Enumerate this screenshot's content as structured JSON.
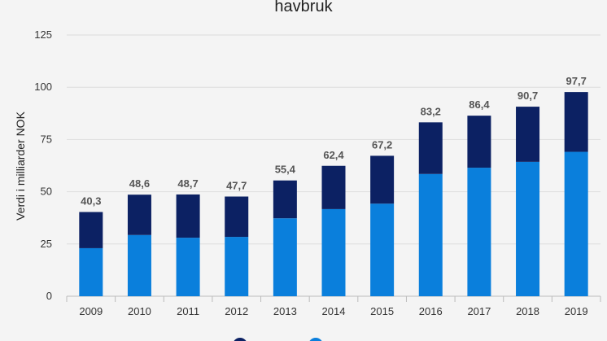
{
  "chart_data": {
    "type": "bar",
    "stacked": true,
    "title": "havbruk",
    "xlabel": "",
    "ylabel": "Verdi i milliarder NOK",
    "ylim": [
      0,
      125
    ],
    "yticks": [
      0,
      25,
      50,
      75,
      100,
      125
    ],
    "grid": true,
    "legend_position": "bottom",
    "categories": [
      "2009",
      "2010",
      "2011",
      "2012",
      "2013",
      "2014",
      "2015",
      "2016",
      "2017",
      "2018",
      "2019"
    ],
    "series": [
      {
        "name": "",
        "color": "#0a7fdc",
        "values": [
          23.0,
          29.3,
          28.0,
          28.4,
          37.3,
          41.7,
          44.3,
          58.5,
          61.5,
          64.3,
          69.1
        ]
      },
      {
        "name": "",
        "color": "#0c2163",
        "values": [
          17.3,
          19.3,
          20.7,
          19.3,
          18.1,
          20.7,
          22.9,
          24.7,
          24.9,
          26.4,
          28.6
        ]
      }
    ],
    "totals": [
      "40,3",
      "48,6",
      "48,7",
      "47,7",
      "55,4",
      "62,4",
      "67,2",
      "83,2",
      "86,4",
      "90,7",
      "97,7"
    ],
    "colors": {
      "background": "#f4f4f4",
      "grid": "#dddddd",
      "axis": "#bbbbbb"
    }
  }
}
